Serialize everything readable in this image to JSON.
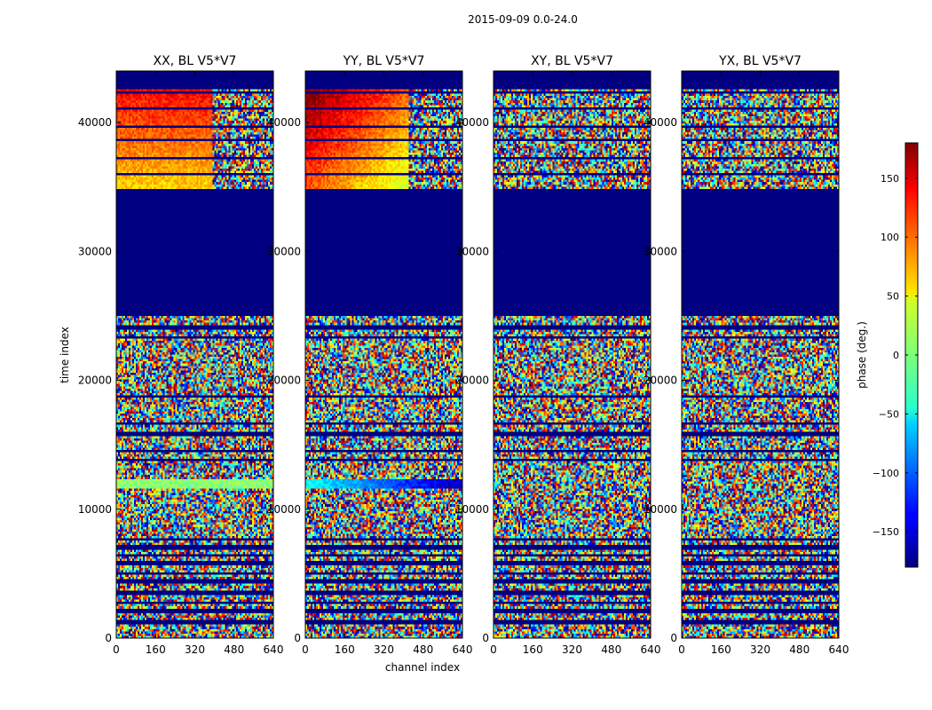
{
  "figure": {
    "suptitle": "2015-09-09 0.0-24.0"
  },
  "chart_data": {
    "type": "heatmap",
    "xlabel": "channel index",
    "ylabel": "time index",
    "xlim": [
      0,
      640
    ],
    "ylim": [
      0,
      44000
    ],
    "xticks": [
      0,
      160,
      320,
      480,
      640
    ],
    "yticks": [
      0,
      10000,
      20000,
      30000,
      40000
    ],
    "panels": [
      {
        "title": "XX, BL V5*V7",
        "baseline_phase_deg": 90,
        "phase_gradient_deg": 150,
        "phase_ramp_deg": 0,
        "band_12000_phase_deg": 5
      },
      {
        "title": "YY, BL V5*V7",
        "baseline_phase_deg": 140,
        "phase_gradient_deg": 160,
        "phase_ramp_deg": -130,
        "band_12000_phase_deg": -40
      },
      {
        "title": "XY, BL V5*V7",
        "baseline_phase_deg": null,
        "phase_gradient_deg": 0,
        "phase_ramp_deg": 0,
        "band_12000_phase_deg": null
      },
      {
        "title": "YX, BL V5*V7",
        "baseline_phase_deg": null,
        "phase_gradient_deg": 0,
        "phase_ramp_deg": 0,
        "band_12000_phase_deg": null
      }
    ],
    "flagged_time_range": [
      25000,
      34800
    ],
    "flagged_value_deg": -180,
    "coherent_band_time_range": [
      34800,
      41000
    ],
    "colorbar": {
      "label": "phase (deg.)",
      "range": [
        -180,
        180
      ],
      "ticks": [
        -150,
        -100,
        -50,
        0,
        50,
        100,
        150
      ],
      "colormap": "jet"
    }
  }
}
